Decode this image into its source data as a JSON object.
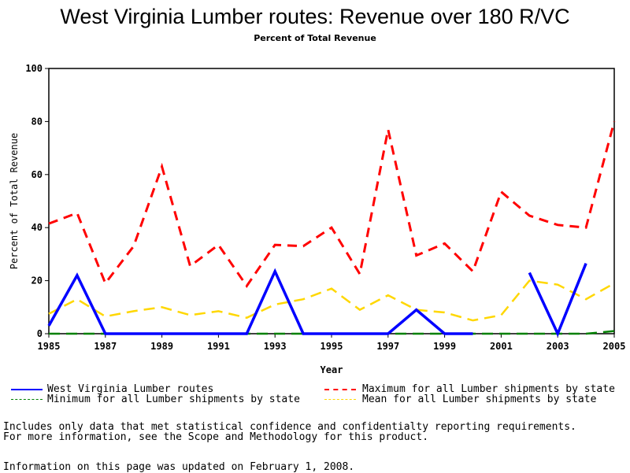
{
  "chart_data": {
    "type": "line",
    "title": "West Virginia Lumber routes: Revenue over 180 R/VC",
    "subtitle": "Percent of Total Revenue",
    "xlabel": "Year",
    "ylabel": "Percent of Total Revenue",
    "xlim": [
      1985,
      2005
    ],
    "ylim": [
      0,
      100
    ],
    "xticks": [
      "1985",
      "1987",
      "1989",
      "1991",
      "1993",
      "1995",
      "1997",
      "1999",
      "2001",
      "2003",
      "2005"
    ],
    "yticks": [
      "0",
      "20",
      "40",
      "60",
      "80",
      "100"
    ],
    "x": [
      1985,
      1986,
      1987,
      1988,
      1989,
      1990,
      1991,
      1992,
      1993,
      1994,
      1995,
      1996,
      1997,
      1998,
      1999,
      2000,
      2001,
      2002,
      2003,
      2004,
      2005
    ],
    "series": [
      {
        "name": "West Virginia Lumber routes",
        "color": "#0000ff",
        "style": "solid",
        "values": [
          3,
          22,
          0,
          0,
          0,
          0,
          0,
          0,
          23.5,
          0,
          0,
          0,
          0,
          9,
          0,
          0,
          null,
          23,
          0,
          26.5,
          null
        ]
      },
      {
        "name": "Maximum for all Lumber shipments by state",
        "color": "#ff0000",
        "style": "dashed",
        "values": [
          41.5,
          45.5,
          19,
          33,
          63,
          25.5,
          33.5,
          18,
          33.5,
          33,
          40,
          22.5,
          77,
          29.5,
          34,
          23.5,
          53.5,
          44.5,
          41,
          40,
          80
        ]
      },
      {
        "name": "Minimum for all Lumber shipments by state",
        "color": "#008000",
        "style": "dashed",
        "values": [
          0,
          0,
          0,
          0,
          0,
          0,
          0,
          0,
          0,
          0,
          0,
          0,
          0,
          0,
          0,
          0,
          0,
          0,
          0,
          0,
          1
        ]
      },
      {
        "name": "Mean for all Lumber shipments by state",
        "color": "#ffd700",
        "style": "dashed",
        "values": [
          7.5,
          13,
          6.5,
          8.5,
          10,
          7,
          8.5,
          6,
          11,
          13,
          17,
          9,
          14.5,
          9,
          8,
          5,
          7,
          20,
          18.5,
          13,
          19
        ]
      }
    ],
    "legend": "bottom"
  },
  "notes": [
    "Includes only data that met statistical confidence and confidentialty reporting requirements.",
    "For more information, see the Scope and Methodology for this product.",
    "Information on this page was updated on February 1, 2008."
  ]
}
